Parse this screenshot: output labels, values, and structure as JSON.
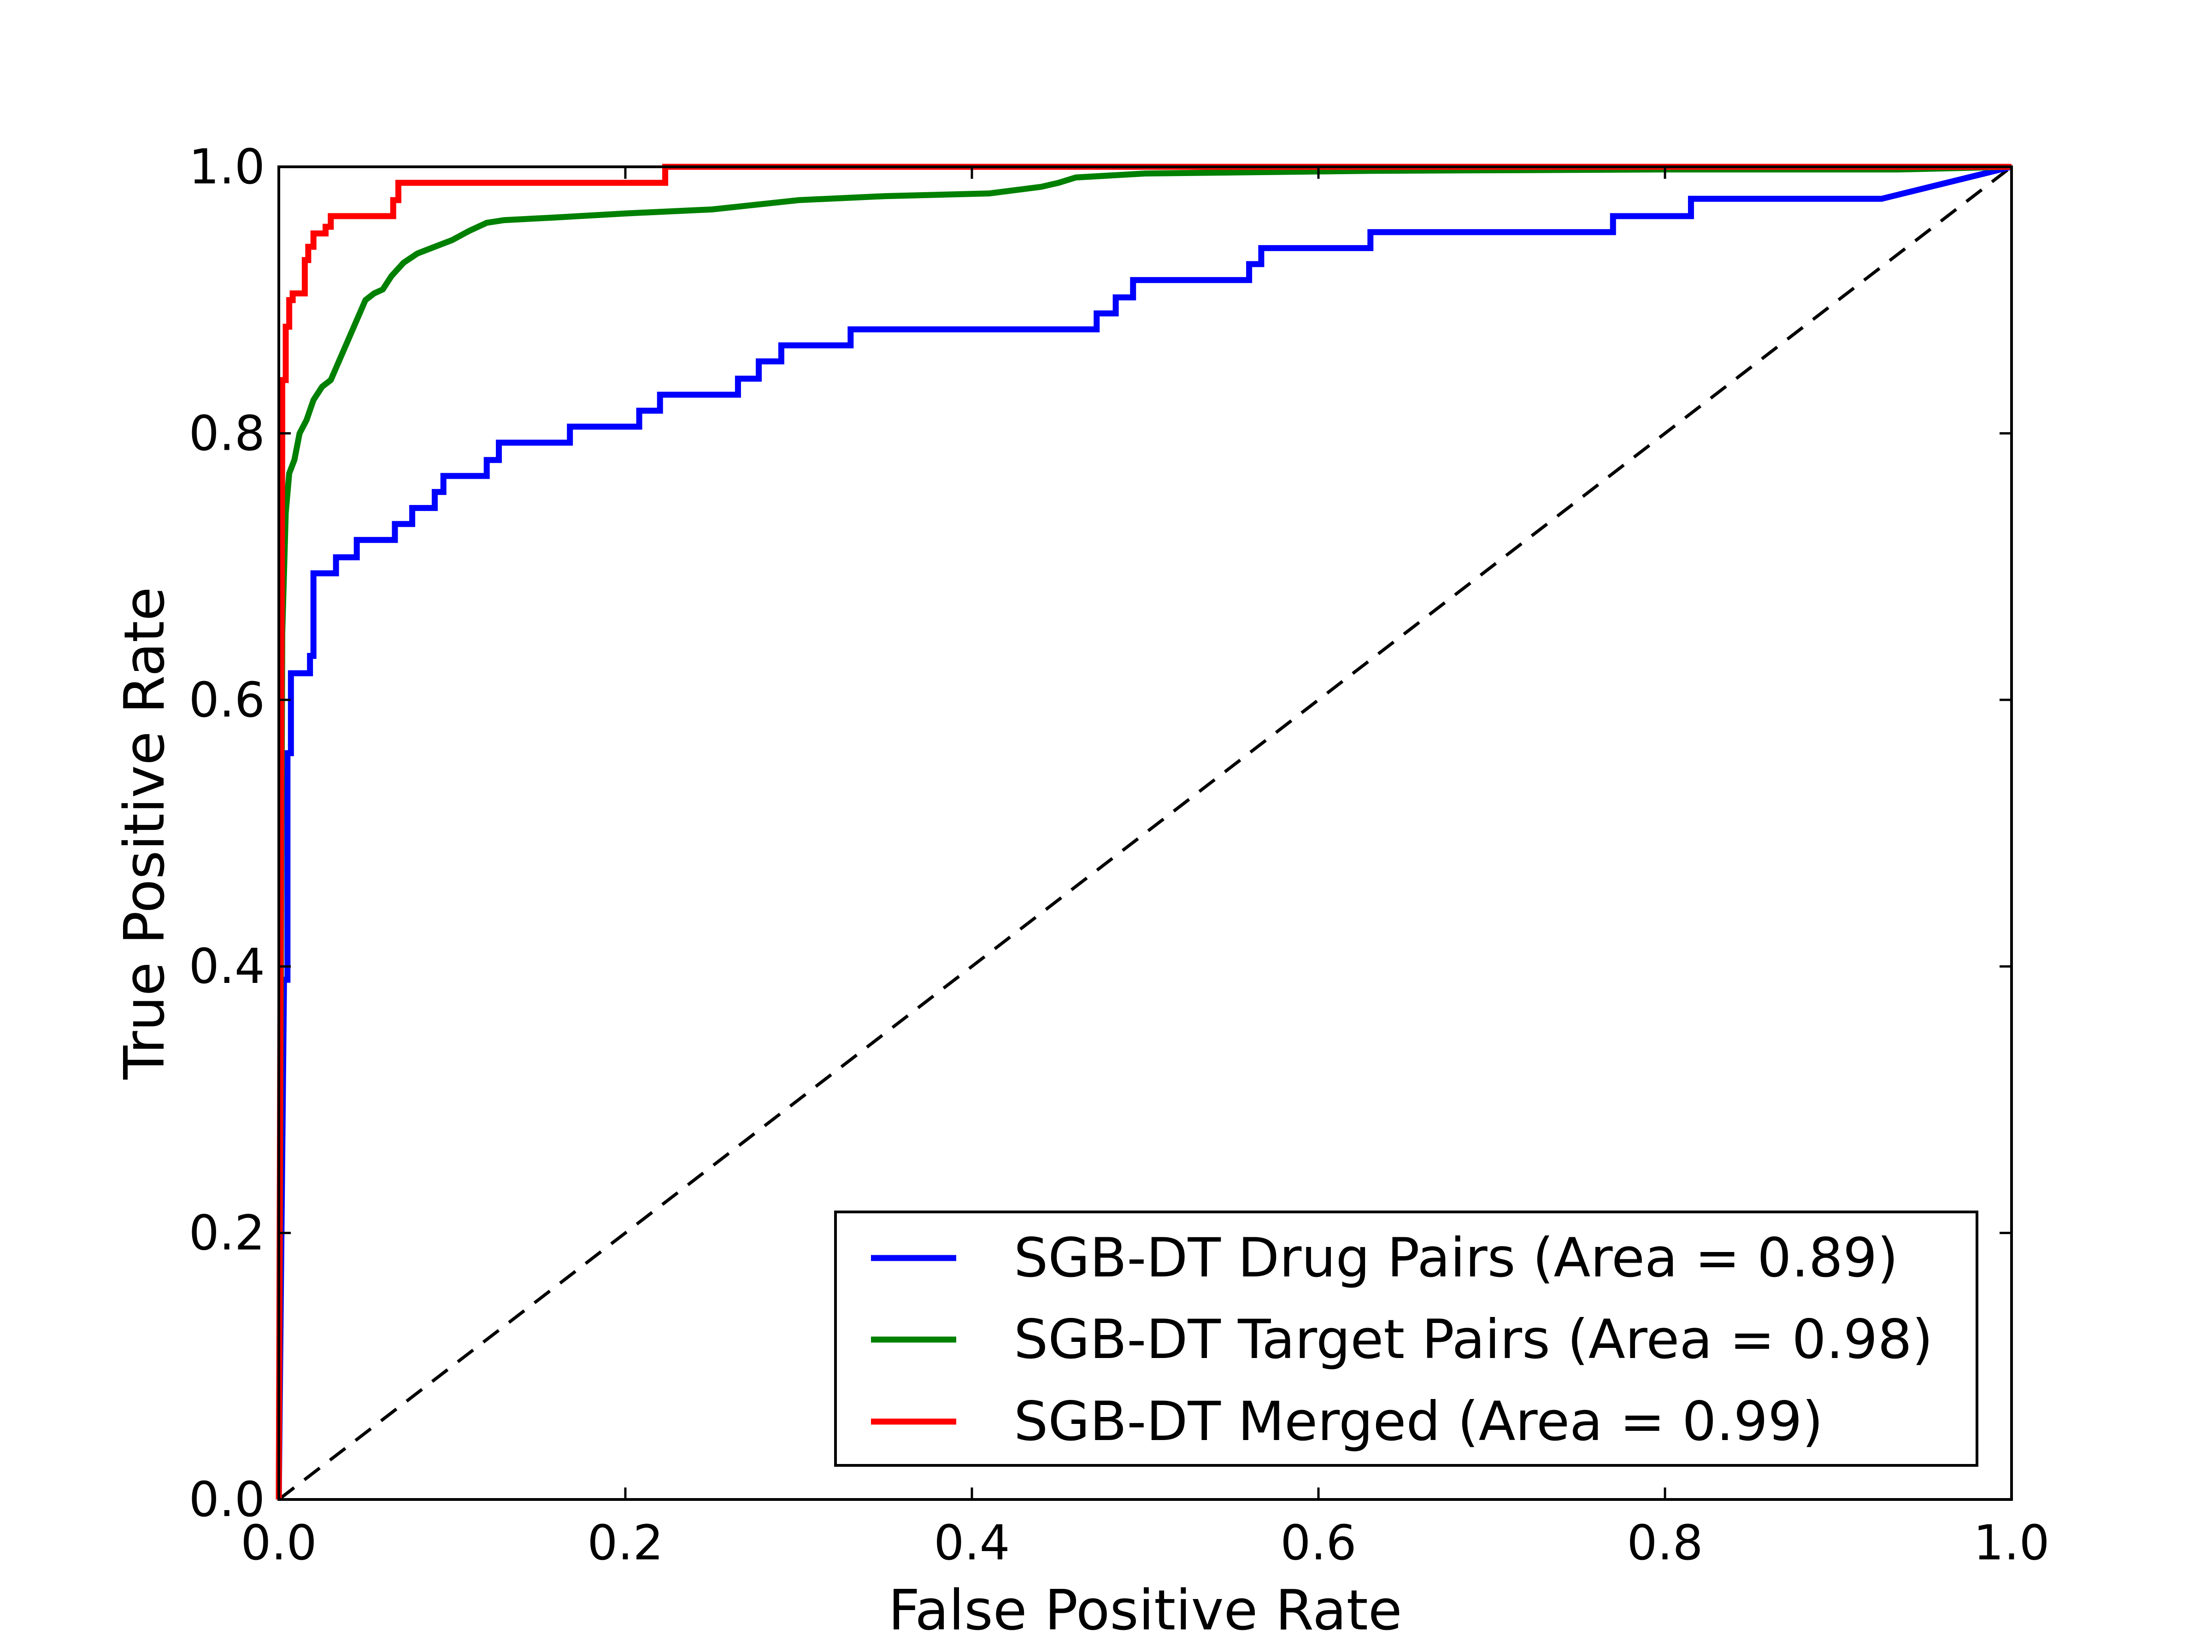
{
  "chart_data": {
    "type": "line",
    "title": "",
    "xlabel": "False Positive Rate",
    "ylabel": "True Positive Rate",
    "xlim": [
      0.0,
      1.0
    ],
    "ylim": [
      0.0,
      1.0
    ],
    "xticks": [
      "0.0",
      "0.2",
      "0.4",
      "0.6",
      "0.8",
      "1.0"
    ],
    "yticks": [
      "0.0",
      "0.2",
      "0.4",
      "0.6",
      "0.8",
      "1.0"
    ],
    "grid": false,
    "legend_position": "lower-right",
    "reference_line": {
      "x": [
        0,
        1
      ],
      "y": [
        0,
        1
      ],
      "color": "#000000",
      "style": "dashed"
    },
    "series": [
      {
        "name": "SGB-DT Drug Pairs (Area = 0.89)",
        "color": "#0000ff",
        "x": [
          0.0,
          0.003,
          0.005,
          0.005,
          0.007,
          0.007,
          0.018,
          0.018,
          0.02,
          0.02,
          0.033,
          0.033,
          0.045,
          0.045,
          0.067,
          0.067,
          0.077,
          0.077,
          0.09,
          0.09,
          0.095,
          0.095,
          0.12,
          0.12,
          0.127,
          0.127,
          0.168,
          0.168,
          0.208,
          0.208,
          0.22,
          0.22,
          0.265,
          0.265,
          0.277,
          0.277,
          0.29,
          0.29,
          0.33,
          0.33,
          0.472,
          0.472,
          0.483,
          0.483,
          0.493,
          0.493,
          0.56,
          0.56,
          0.567,
          0.567,
          0.63,
          0.63,
          0.77,
          0.77,
          0.815,
          0.815,
          0.925,
          1.0
        ],
        "y": [
          0.0,
          0.39,
          0.39,
          0.56,
          0.56,
          0.62,
          0.62,
          0.633,
          0.633,
          0.695,
          0.695,
          0.707,
          0.707,
          0.72,
          0.72,
          0.732,
          0.732,
          0.744,
          0.744,
          0.756,
          0.756,
          0.768,
          0.768,
          0.78,
          0.78,
          0.793,
          0.793,
          0.805,
          0.805,
          0.817,
          0.817,
          0.829,
          0.829,
          0.841,
          0.841,
          0.854,
          0.854,
          0.866,
          0.866,
          0.878,
          0.878,
          0.89,
          0.89,
          0.902,
          0.902,
          0.915,
          0.915,
          0.927,
          0.927,
          0.939,
          0.939,
          0.951,
          0.951,
          0.963,
          0.963,
          0.976,
          0.976,
          1.0
        ]
      },
      {
        "name": "SGB-DT Target Pairs (Area = 0.98)",
        "color": "#008000",
        "x": [
          0.0,
          0.002,
          0.004,
          0.006,
          0.009,
          0.012,
          0.016,
          0.02,
          0.025,
          0.03,
          0.035,
          0.04,
          0.045,
          0.05,
          0.055,
          0.06,
          0.065,
          0.072,
          0.08,
          0.09,
          0.1,
          0.11,
          0.12,
          0.13,
          0.16,
          0.2,
          0.25,
          0.3,
          0.35,
          0.41,
          0.44,
          0.45,
          0.46,
          0.5,
          0.63,
          0.8,
          0.935,
          1.0
        ],
        "y": [
          0.0,
          0.65,
          0.74,
          0.77,
          0.78,
          0.8,
          0.81,
          0.825,
          0.835,
          0.84,
          0.855,
          0.87,
          0.885,
          0.9,
          0.905,
          0.908,
          0.918,
          0.928,
          0.935,
          0.94,
          0.945,
          0.952,
          0.958,
          0.96,
          0.962,
          0.965,
          0.968,
          0.975,
          0.978,
          0.98,
          0.985,
          0.988,
          0.992,
          0.995,
          0.997,
          0.998,
          0.998,
          1.0
        ]
      },
      {
        "name": "SGB-DT Merged (Area = 0.99)",
        "color": "#ff0000",
        "x": [
          0.0,
          0.002,
          0.002,
          0.004,
          0.004,
          0.006,
          0.006,
          0.008,
          0.008,
          0.015,
          0.015,
          0.017,
          0.017,
          0.02,
          0.02,
          0.027,
          0.027,
          0.03,
          0.03,
          0.066,
          0.066,
          0.069,
          0.069,
          0.223,
          0.223,
          1.0
        ],
        "y": [
          0.0,
          0.8,
          0.84,
          0.84,
          0.88,
          0.88,
          0.9,
          0.9,
          0.905,
          0.905,
          0.93,
          0.93,
          0.94,
          0.94,
          0.95,
          0.95,
          0.955,
          0.955,
          0.963,
          0.963,
          0.975,
          0.975,
          0.988,
          0.988,
          1.0,
          1.0
        ]
      }
    ]
  }
}
